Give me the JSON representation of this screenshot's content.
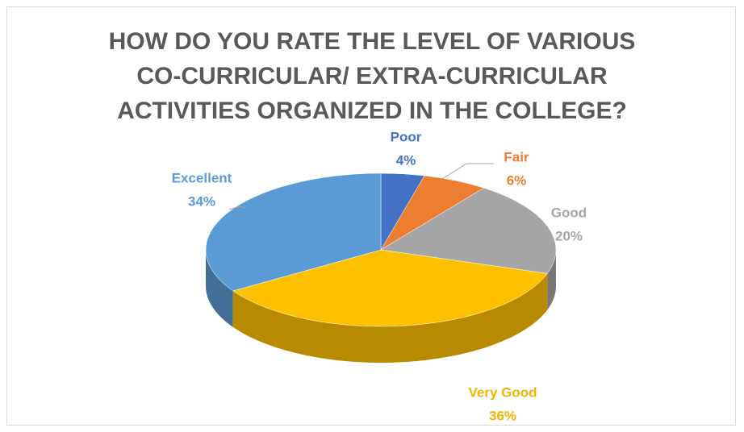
{
  "chart_data": {
    "type": "pie",
    "title": "HOW DO YOU RATE THE LEVEL OF VARIOUS CO-CURRICULAR/ EXTRA-CURRICULAR ACTIVITIES ORGANIZED IN THE COLLEGE?",
    "categories": [
      "Poor",
      "Fair",
      "Good",
      "Very Good",
      "Excellent"
    ],
    "values": [
      4,
      6,
      20,
      36,
      34
    ],
    "value_labels": [
      "4%",
      "6%",
      "20%",
      "36%",
      "34%"
    ],
    "colors": [
      "#4472c4",
      "#ed7d31",
      "#a5a5a5",
      "#ffc000",
      "#5b9bd5"
    ]
  }
}
